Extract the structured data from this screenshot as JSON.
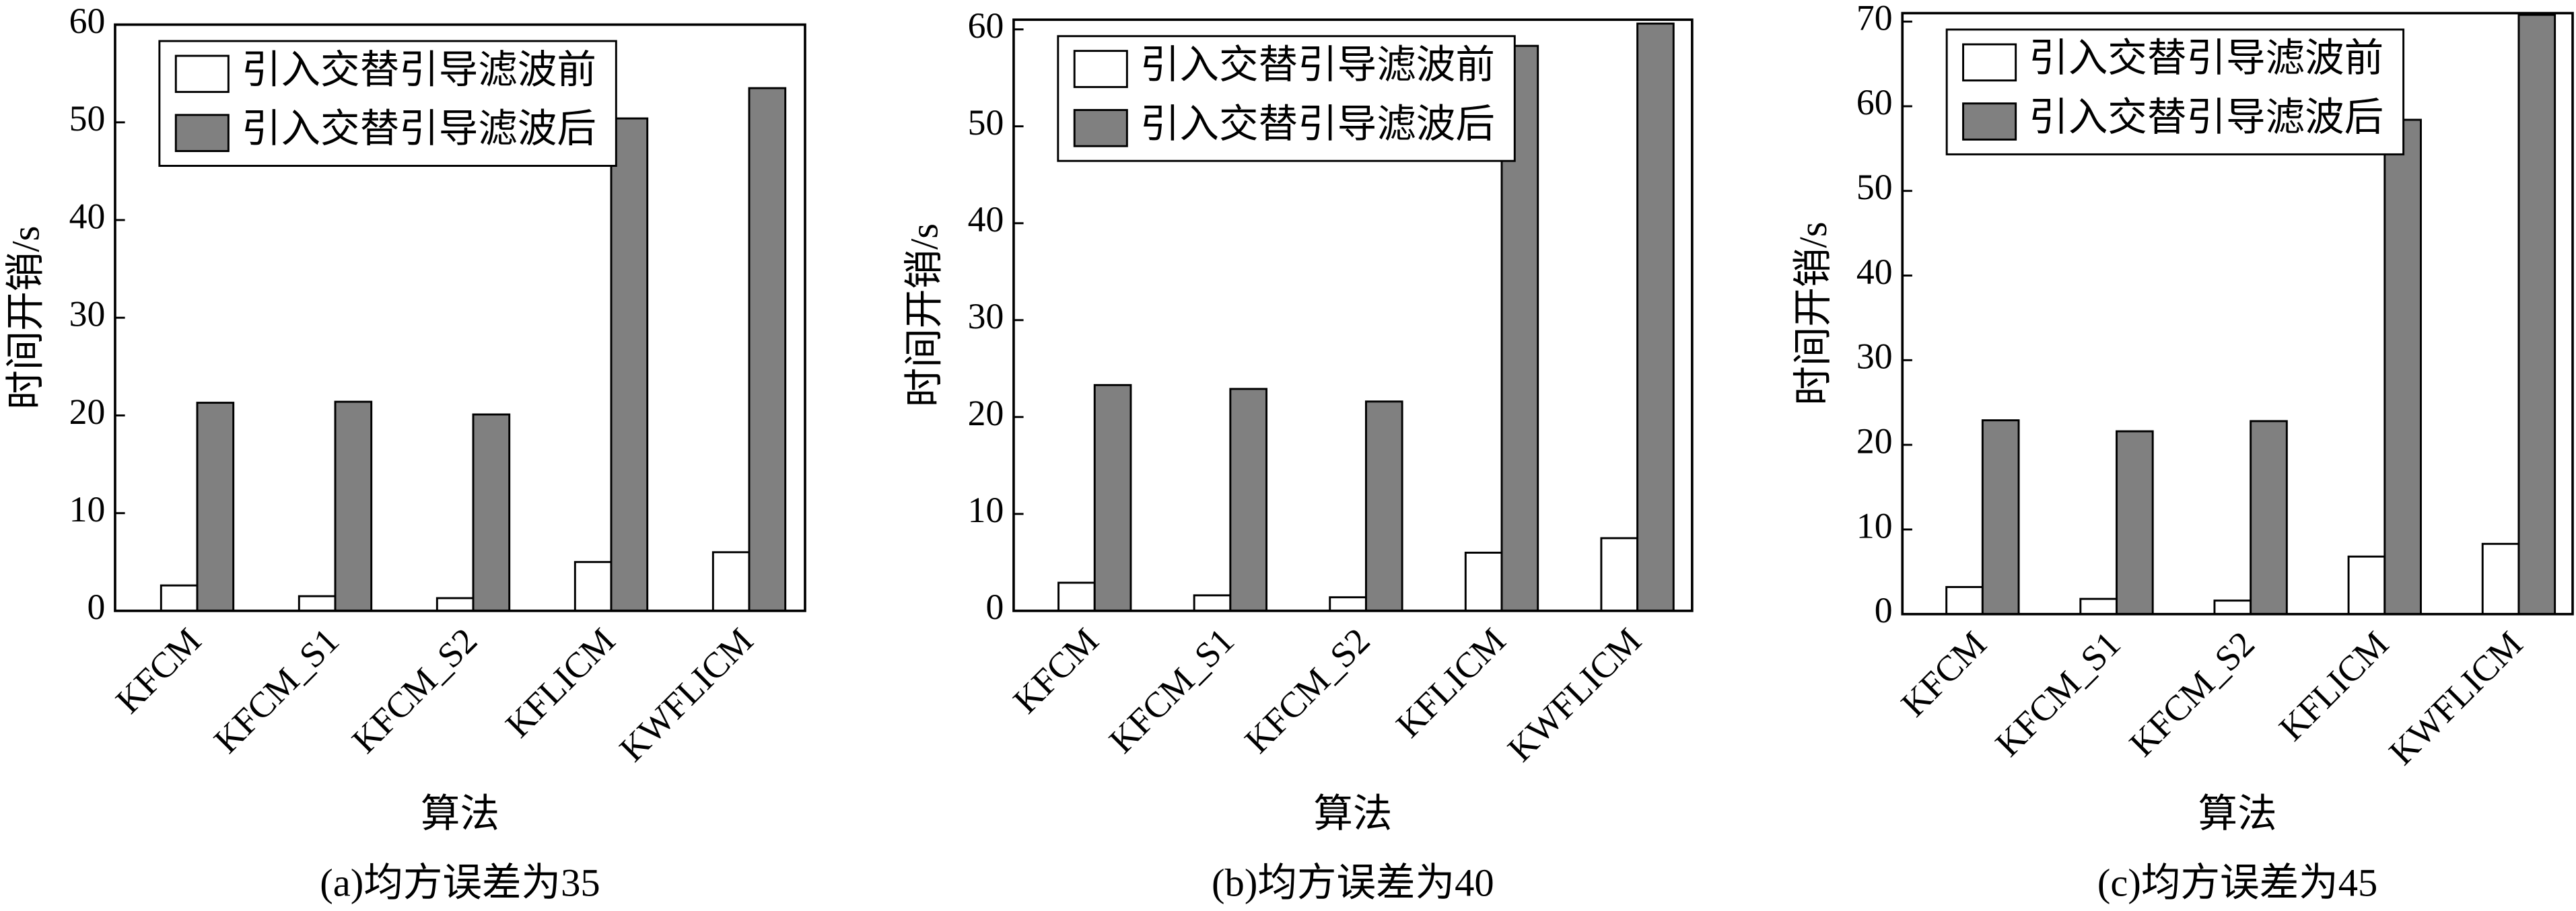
{
  "chart_data": [
    {
      "type": "bar",
      "title": "(a)均方误差为35",
      "xlabel": "算法",
      "ylabel": "时间开销/s",
      "categories": [
        "KFCM",
        "KFCM_S1",
        "KFCM_S2",
        "KFLICM",
        "KWFLICM"
      ],
      "series": [
        {
          "name": "引入交替引导滤波前",
          "color": "#ffffff",
          "values": [
            2.6,
            1.5,
            1.3,
            5.0,
            6.0
          ]
        },
        {
          "name": "引入交替引导滤波后",
          "color": "#808080",
          "values": [
            21.3,
            21.4,
            20.1,
            50.4,
            53.5
          ]
        }
      ],
      "ylim": [
        0,
        60
      ],
      "yticks": [
        0,
        10,
        20,
        30,
        40,
        50,
        60
      ],
      "legend": "upper left"
    },
    {
      "type": "bar",
      "title": "(b)均方误差为40",
      "xlabel": "算法",
      "ylabel": "时间开销/s",
      "categories": [
        "KFCM",
        "KFCM_S1",
        "KFCM_S2",
        "KFLICM",
        "KWFLICM"
      ],
      "series": [
        {
          "name": "引入交替引导滤波前",
          "color": "#ffffff",
          "values": [
            2.9,
            1.6,
            1.4,
            6.0,
            7.5
          ]
        },
        {
          "name": "引入交替引导滤波后",
          "color": "#808080",
          "values": [
            23.3,
            22.9,
            21.6,
            58.3,
            60.6
          ]
        }
      ],
      "ylim": [
        0,
        61
      ],
      "yticks": [
        0,
        10,
        20,
        30,
        40,
        50,
        60
      ],
      "legend": "upper left"
    },
    {
      "type": "bar",
      "title": "(c)均方误差为45",
      "xlabel": "算法",
      "ylabel": "时间开销/s",
      "categories": [
        "KFCM",
        "KFCM_S1",
        "KFCM_S2",
        "KFLICM",
        "KWFLICM"
      ],
      "series": [
        {
          "name": "引入交替引导滤波前",
          "color": "#ffffff",
          "values": [
            3.2,
            1.8,
            1.6,
            6.8,
            8.3
          ]
        },
        {
          "name": "引入交替引导滤波后",
          "color": "#808080",
          "values": [
            22.9,
            21.6,
            22.8,
            58.4,
            70.8
          ]
        }
      ],
      "ylim": [
        0,
        71
      ],
      "yticks": [
        0,
        10,
        20,
        30,
        40,
        50,
        60,
        70
      ],
      "legend": "upper left"
    }
  ]
}
